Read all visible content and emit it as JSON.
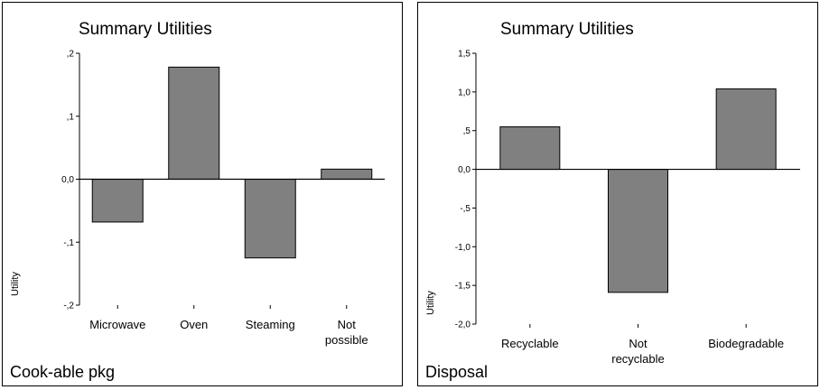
{
  "chart_data": [
    {
      "type": "bar",
      "title": "Summary Utilities",
      "caption": "Cook-able pkg",
      "ylabel": "Utility",
      "xlabel": "",
      "categories": [
        [
          "Microwave"
        ],
        [
          "Oven"
        ],
        [
          "Steaming"
        ],
        [
          "Not",
          "possible"
        ]
      ],
      "values": [
        -0.068,
        0.178,
        -0.125,
        0.016
      ],
      "ylim": [
        -0.2,
        0.2
      ],
      "yticks": [
        0.2,
        0.1,
        0.0,
        -0.1,
        -0.2
      ],
      "ytick_labels": [
        ",2",
        ",1",
        "0,0",
        "-,1",
        "-,2"
      ],
      "bar_color": "#808080",
      "grid": false
    },
    {
      "type": "bar",
      "title": "Summary Utilities",
      "caption": "Disposal",
      "ylabel": "Utility",
      "xlabel": "",
      "categories": [
        [
          "Recyclable"
        ],
        [
          "Not",
          "recyclable"
        ],
        [
          "Biodegradable"
        ]
      ],
      "values": [
        0.55,
        -1.59,
        1.04
      ],
      "ylim": [
        -2.0,
        1.5
      ],
      "yticks": [
        1.5,
        1.0,
        0.5,
        0.0,
        -0.5,
        -1.0,
        -1.5,
        -2.0
      ],
      "ytick_labels": [
        "1,5",
        "1,0",
        ",5",
        "0,0",
        "-,5",
        "-1,0",
        "-1,5",
        "-2,0"
      ],
      "bar_color": "#808080",
      "grid": false
    }
  ]
}
